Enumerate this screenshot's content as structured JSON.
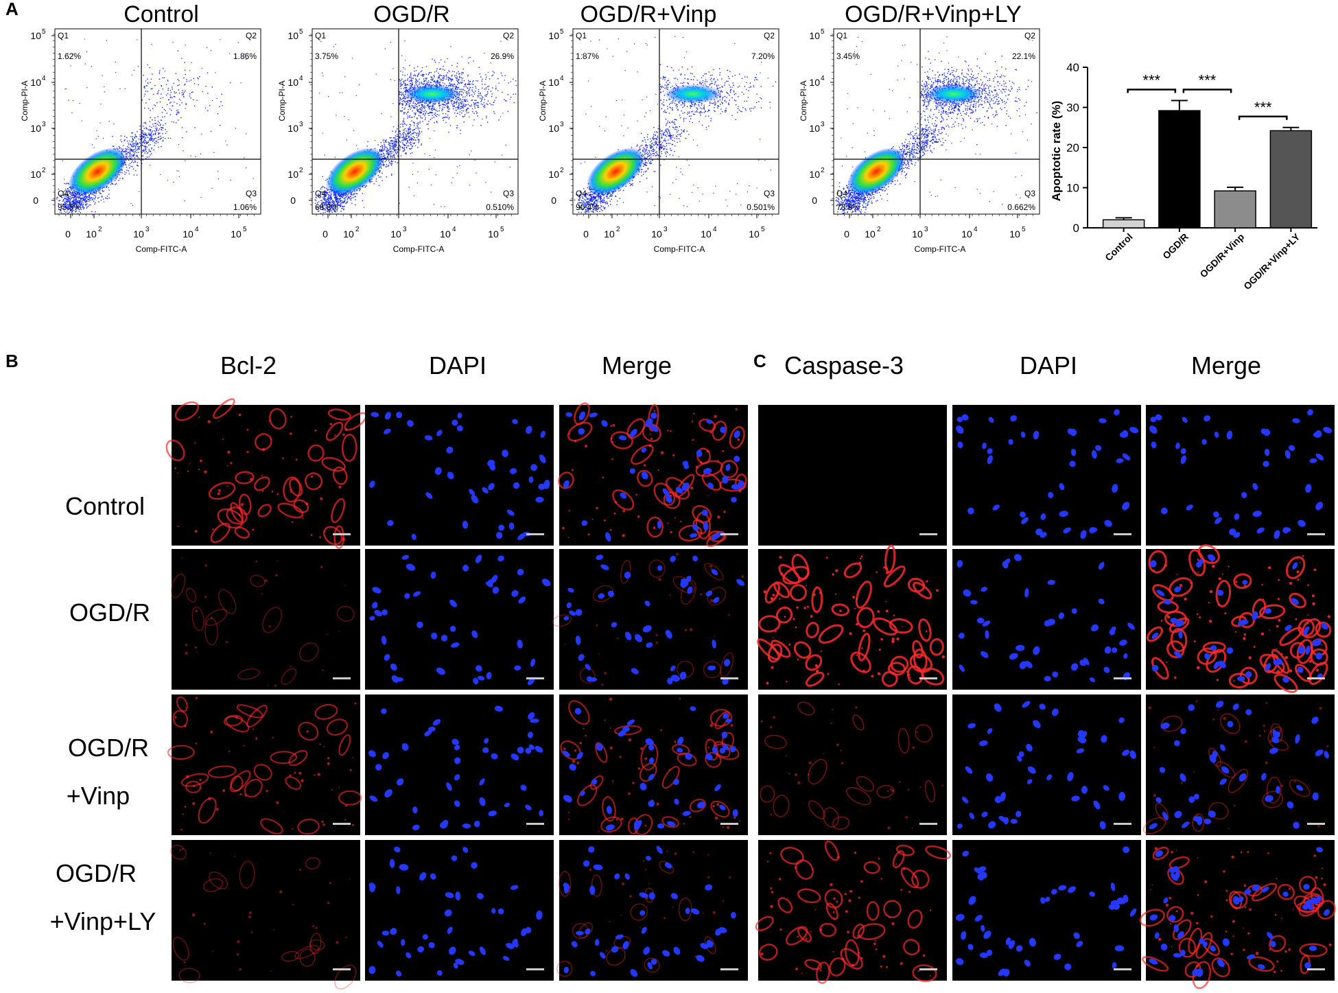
{
  "panel_labels": {
    "a": "A",
    "b": "B",
    "c": "C"
  },
  "flow": {
    "xlabel": "Comp-FITC-A",
    "ylabel": "Comp-PI-A",
    "tick_labels": [
      "0",
      "10",
      "10",
      "10",
      "10"
    ],
    "tick_exponents": [
      "",
      "2",
      "3",
      "4",
      "5"
    ],
    "quadrant_names": [
      "Q1",
      "Q2",
      "Q3",
      "Q4"
    ],
    "panels": [
      {
        "title": "Control",
        "q1": "1.62%",
        "q2": "1.86%",
        "q3": "1.06%",
        "q4": "95.5%"
      },
      {
        "title": "OGD/R",
        "q1": "3.75%",
        "q2": "26.9%",
        "q3": "0.510%",
        "q4": "68.8%"
      },
      {
        "title": "OGD/R+Vinp",
        "q1": "1.87%",
        "q2": "7.20%",
        "q3": "0.501%",
        "q4": "90.4%"
      },
      {
        "title": "OGD/R+Vinp+LY",
        "q1": "3.45%",
        "q2": "22.1%",
        "q3": "0.662%",
        "q4": "73.8%"
      }
    ]
  },
  "chart_data": {
    "type": "bar",
    "ylabel": "Apoptotic rate (%)",
    "ylim": [
      0,
      40
    ],
    "yticks": [
      0,
      10,
      20,
      30,
      40
    ],
    "categories": [
      "Control",
      "OGD/R",
      "OGD/R+Vinp",
      "OGD/R+Vinp+LY"
    ],
    "values": [
      2.0,
      29.2,
      9.2,
      24.2
    ],
    "errors": [
      0.5,
      2.5,
      0.9,
      0.8
    ],
    "colors": [
      "#d2d2d2",
      "#000000",
      "#8c8c8c",
      "#555555"
    ],
    "significance": [
      {
        "from": 0,
        "to": 1,
        "label": "***"
      },
      {
        "from": 1,
        "to": 2,
        "label": "***"
      },
      {
        "from": 2,
        "to": 3,
        "label": "***"
      }
    ]
  },
  "if_b": {
    "columns": [
      "Bcl-2",
      "DAPI",
      "Merge"
    ],
    "rows": [
      {
        "line1": "Control",
        "line2": ""
      },
      {
        "line1": "OGD/R",
        "line2": ""
      },
      {
        "line1": "OGD/R",
        "line2": "+Vinp"
      },
      {
        "line1": "OGD/R",
        "line2": "+Vinp+LY"
      }
    ],
    "red_intensity": [
      0.75,
      0.22,
      0.6,
      0.25
    ]
  },
  "if_c": {
    "columns": [
      "Caspase-3",
      "DAPI",
      "Merge"
    ],
    "red_intensity": [
      0.0,
      1.0,
      0.3,
      0.75
    ]
  },
  "colors": {
    "red_stain": "#ff2a2a",
    "blue_stain": "#2438ff",
    "density_hot": "#ff2000"
  }
}
